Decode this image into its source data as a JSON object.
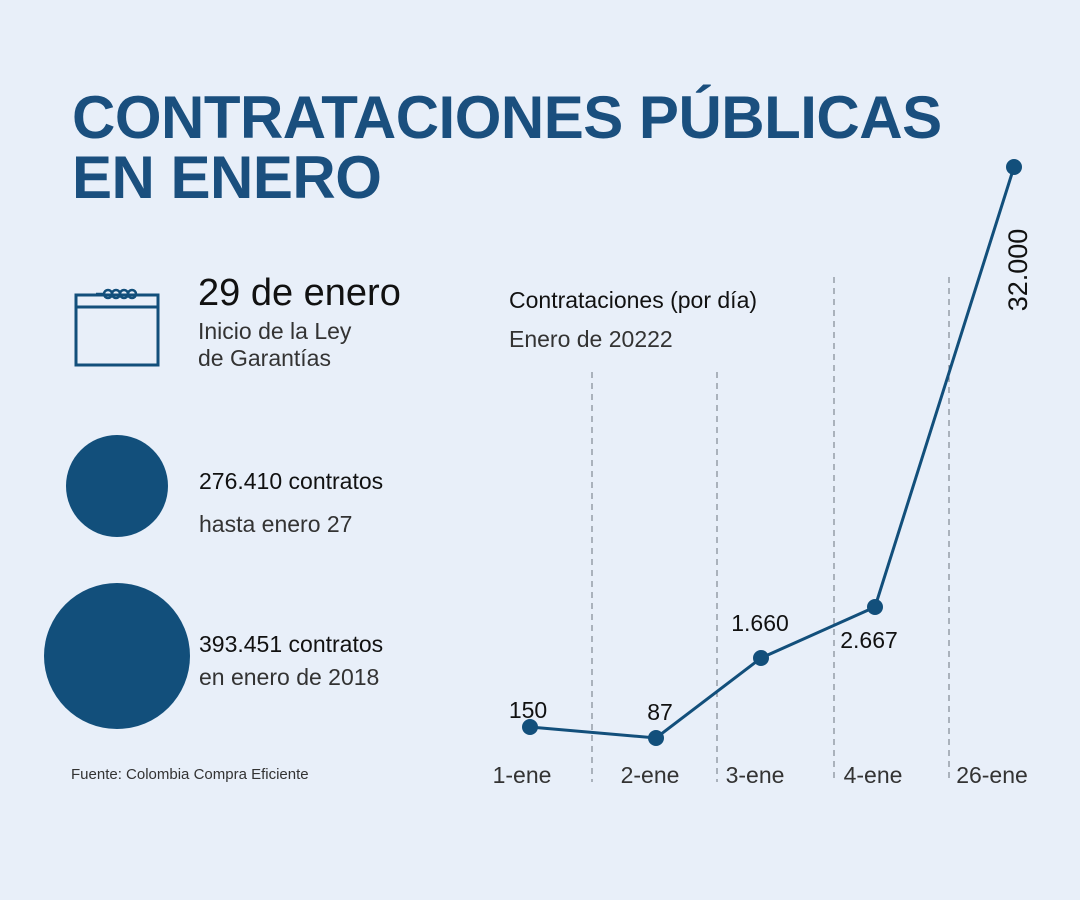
{
  "header": {
    "title_line1": "CONTRATACIONES PÚBLICAS",
    "title_line2": "EN ENERO"
  },
  "calendar_note": {
    "icon": "calendar-icon",
    "date": "29 de enero",
    "desc_line1": "Inicio de la Ley",
    "desc_line2": "de Garantías"
  },
  "stats": [
    {
      "value": "276.410 contratos",
      "desc": "hasta enero 27"
    },
    {
      "value": "393.451 contratos",
      "desc": "en enero de 2018"
    }
  ],
  "source": "Fuente: Colombia Compra Eficiente",
  "colors": {
    "primary": "#124f7b",
    "title": "#1a4f7e",
    "background": "#e8eff9"
  },
  "chart_data": {
    "type": "line",
    "title": "Contrataciones (por día)",
    "subtitle": "Enero de 20222",
    "categories": [
      "1-ene",
      "2-ene",
      "3-ene",
      "4-ene",
      "26-ene"
    ],
    "values": [
      150,
      87,
      1660,
      2667,
      32000
    ],
    "data_labels": [
      "150",
      "87",
      "1.660",
      "2.667",
      "32.000"
    ],
    "grid": "dashed vertical separators between categories",
    "color": "#124f7b"
  }
}
